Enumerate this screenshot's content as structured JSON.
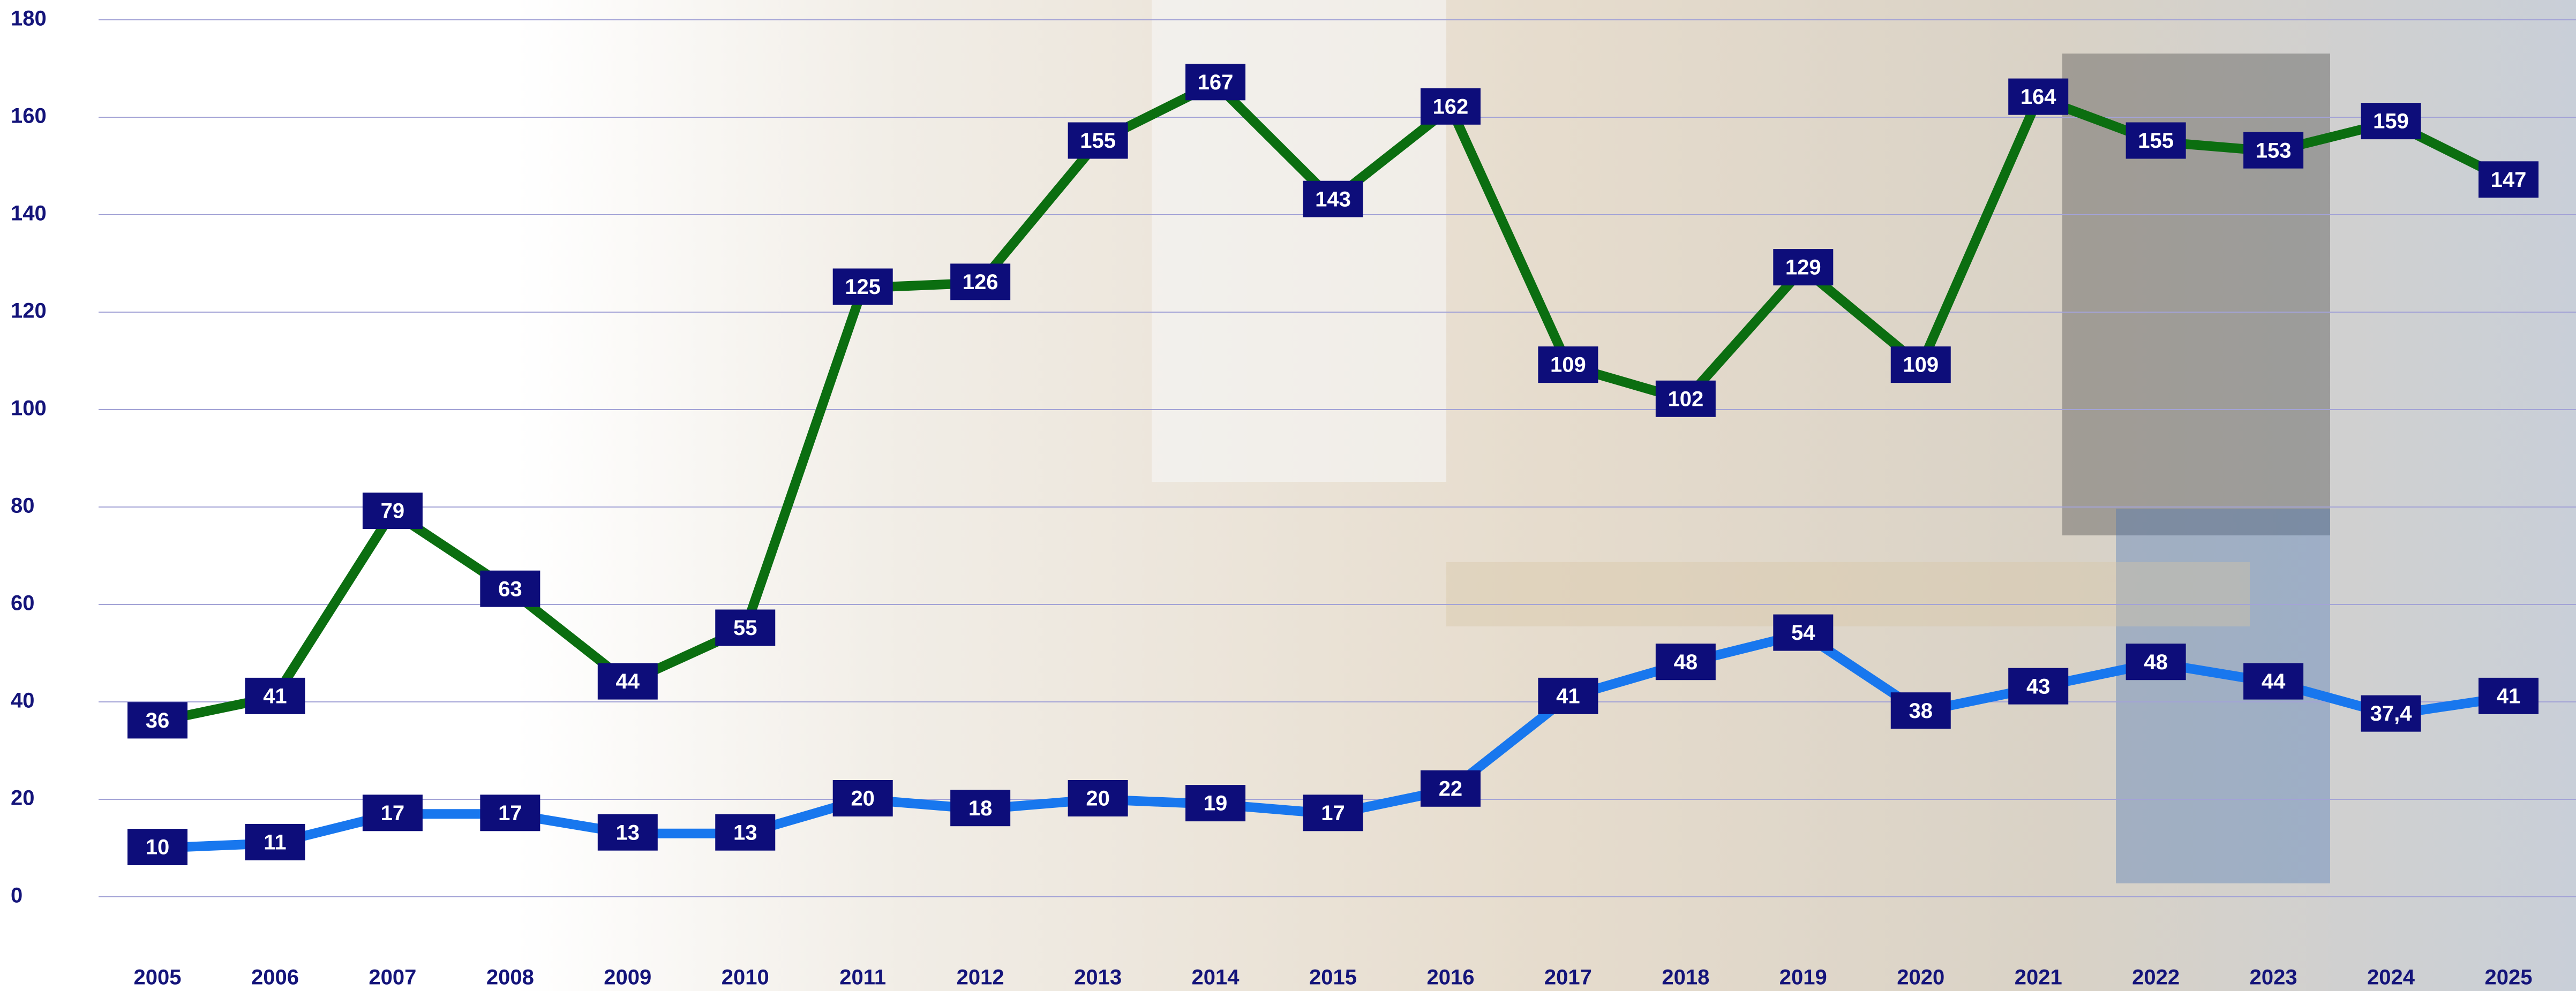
{
  "chart_data": {
    "type": "line",
    "categories": [
      "2005",
      "2006",
      "2007",
      "2008",
      "2009",
      "2010",
      "2011",
      "2012",
      "2013",
      "2014",
      "2015",
      "2016",
      "2017",
      "2018",
      "2019",
      "2020",
      "2021",
      "2022",
      "2023",
      "2024",
      "2025"
    ],
    "series": [
      {
        "color": "#0b6e10",
        "values": [
          36,
          41,
          79,
          63,
          44,
          55,
          125,
          126,
          155,
          167,
          143,
          162,
          109,
          102,
          129,
          109,
          164,
          155,
          153,
          159,
          147
        ]
      },
      {
        "color": "#1877ee",
        "values": [
          10,
          11,
          17,
          17,
          13,
          13,
          20,
          18,
          20,
          19,
          17,
          22,
          41,
          48,
          54,
          38,
          43,
          48,
          44,
          37.4,
          41
        ],
        "value_labels": [
          "10",
          "11",
          "17",
          "17",
          "13",
          "13",
          "20",
          "18",
          "20",
          "19",
          "17",
          "22",
          "41",
          "48",
          "54",
          "38",
          "43",
          "48",
          "44",
          "37,4",
          "41"
        ]
      }
    ],
    "ylim": [
      0,
      180
    ],
    "yticks": [
      0,
      20,
      40,
      60,
      80,
      100,
      120,
      140,
      160,
      180
    ],
    "grid": true
  }
}
